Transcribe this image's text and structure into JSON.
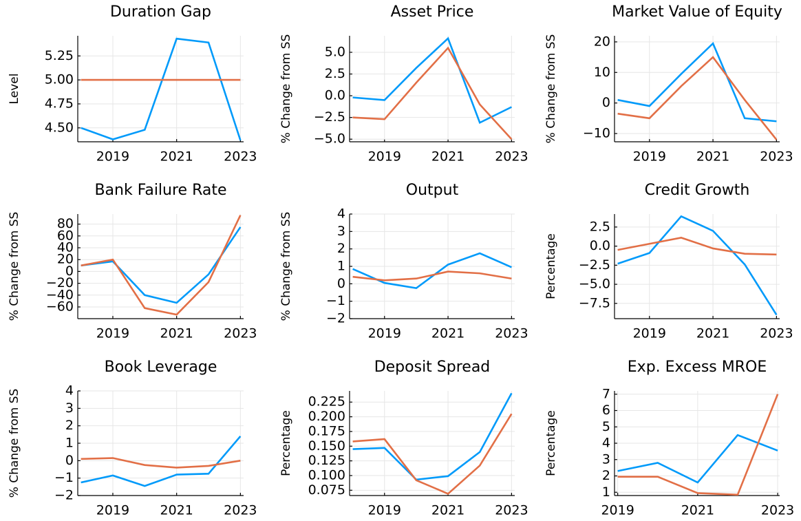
{
  "chart_data": [
    {
      "type": "line",
      "title": "Duration Gap",
      "ylabel": "Level",
      "x": [
        2018,
        2019,
        2020,
        2021,
        2022,
        2023
      ],
      "series": [
        {
          "color": "#009afa",
          "values": [
            4.5,
            4.38,
            4.48,
            5.43,
            5.39,
            4.37
          ]
        },
        {
          "color": "#e26f46",
          "values": [
            5.0,
            5.0,
            5.0,
            5.0,
            5.0,
            5.0
          ]
        }
      ],
      "xlim": [
        2017.9,
        2023.1
      ],
      "xticks": [
        2019,
        2021,
        2023
      ],
      "ylim": [
        4.355,
        5.46
      ],
      "yticks": [
        {
          "value": 4.5,
          "label": "4.50"
        },
        4.75,
        {
          "value": 5,
          "label": "5.00"
        },
        5.25
      ],
      "grid": true
    },
    {
      "type": "line",
      "title": "Asset Price",
      "ylabel": "% Change from SS",
      "x": [
        2018,
        2019,
        2020,
        2021,
        2022,
        2023
      ],
      "series": [
        {
          "color": "#009afa",
          "values": [
            -0.2,
            -0.5,
            3.2,
            6.6,
            -3.1,
            -1.3
          ]
        },
        {
          "color": "#e26f46",
          "values": [
            -2.5,
            -2.7,
            1.5,
            5.5,
            -1.0,
            -5.0
          ]
        }
      ],
      "xlim": [
        2017.9,
        2023.1
      ],
      "xticks": [
        2019,
        2021,
        2023
      ],
      "ylim": [
        -5.3,
        6.9
      ],
      "yticks": [
        {
          "value": -5,
          "label": "−5.0"
        },
        {
          "value": -2.5,
          "label": "−2.5"
        },
        {
          "value": 0,
          "label": "0.0"
        },
        2.5,
        {
          "value": 5,
          "label": "5.0"
        }
      ],
      "grid": true
    },
    {
      "type": "line",
      "title": "Market Value of Equity",
      "ylabel": "% Change from SS",
      "x": [
        2018,
        2019,
        2020,
        2021,
        2022,
        2023
      ],
      "series": [
        {
          "color": "#009afa",
          "values": [
            1,
            -1,
            9.5,
            19.5,
            -5,
            -6
          ]
        },
        {
          "color": "#e26f46",
          "values": [
            -3.5,
            -5,
            5.5,
            15,
            1,
            -12
          ]
        }
      ],
      "xlim": [
        2017.9,
        2023.1
      ],
      "xticks": [
        2019,
        2021,
        2023
      ],
      "ylim": [
        -12.7,
        22
      ],
      "yticks": [
        {
          "value": -10,
          "label": "−10"
        },
        0,
        10,
        20
      ],
      "grid": true
    },
    {
      "type": "line",
      "title": "Bank Failure Rate",
      "ylabel": "% Change from SS",
      "x": [
        2018,
        2019,
        2020,
        2021,
        2022,
        2023
      ],
      "series": [
        {
          "color": "#009afa",
          "values": [
            10,
            17,
            -40,
            -53,
            -5,
            75
          ]
        },
        {
          "color": "#e26f46",
          "values": [
            10,
            20,
            -62,
            -73,
            -18,
            95
          ]
        }
      ],
      "xlim": [
        2017.9,
        2023.1
      ],
      "xticks": [
        2019,
        2021,
        2023
      ],
      "ylim": [
        -79.8,
        97
      ],
      "yticks": [
        {
          "value": -60,
          "label": "−60"
        },
        {
          "value": -40,
          "label": "−40"
        },
        {
          "value": -20,
          "label": "−20"
        },
        0,
        20,
        40,
        60,
        80
      ],
      "grid": true
    },
    {
      "type": "line",
      "title": "Output",
      "ylabel": "% Change from SS",
      "x": [
        2018,
        2019,
        2020,
        2021,
        2022,
        2023
      ],
      "series": [
        {
          "color": "#009afa",
          "values": [
            0.85,
            0.05,
            -0.25,
            1.1,
            1.75,
            0.95
          ]
        },
        {
          "color": "#e26f46",
          "values": [
            0.4,
            0.2,
            0.3,
            0.7,
            0.6,
            0.3
          ]
        }
      ],
      "xlim": [
        2017.9,
        2023.1
      ],
      "xticks": [
        2019,
        2021,
        2023
      ],
      "ylim": [
        -2,
        4
      ],
      "yticks": [
        {
          "value": -2,
          "label": "−2"
        },
        {
          "value": -1,
          "label": "−1"
        },
        0,
        1,
        2,
        3,
        4
      ],
      "grid": true
    },
    {
      "type": "line",
      "title": "Credit Growth",
      "ylabel": "Percentage",
      "x": [
        2018,
        2019,
        2020,
        2021,
        2022,
        2023
      ],
      "series": [
        {
          "color": "#009afa",
          "values": [
            -2.3,
            -0.9,
            3.9,
            2.0,
            -2.4,
            -9.0
          ]
        },
        {
          "color": "#e26f46",
          "values": [
            -0.5,
            0.3,
            1.1,
            -0.3,
            -1.0,
            -1.1
          ]
        }
      ],
      "xlim": [
        2017.9,
        2023.1
      ],
      "xticks": [
        2019,
        2021,
        2023
      ],
      "ylim": [
        -9.5,
        4.2
      ],
      "yticks": [
        {
          "value": -7.5,
          "label": "−7.5"
        },
        {
          "value": -5,
          "label": "−5.0"
        },
        {
          "value": -2.5,
          "label": "−2.5"
        },
        {
          "value": 0,
          "label": "0.0"
        },
        2.5
      ],
      "grid": true
    },
    {
      "type": "line",
      "title": "Book Leverage",
      "ylabel": "% Change from SS",
      "x": [
        2018,
        2019,
        2020,
        2021,
        2022,
        2023
      ],
      "series": [
        {
          "color": "#009afa",
          "values": [
            -1.25,
            -0.85,
            -1.45,
            -0.8,
            -0.75,
            1.4
          ]
        },
        {
          "color": "#e26f46",
          "values": [
            0.1,
            0.15,
            -0.25,
            -0.4,
            -0.3,
            0.0
          ]
        }
      ],
      "xlim": [
        2017.9,
        2023.1
      ],
      "xticks": [
        2019,
        2021,
        2023
      ],
      "ylim": [
        -2,
        4
      ],
      "yticks": [
        {
          "value": -2,
          "label": "−2"
        },
        {
          "value": -1,
          "label": "−1"
        },
        0,
        1,
        2,
        3,
        4
      ],
      "grid": true
    },
    {
      "type": "line",
      "title": "Deposit Spread",
      "ylabel": "Percentage",
      "x": [
        2018,
        2019,
        2020,
        2021,
        2022,
        2023
      ],
      "series": [
        {
          "color": "#009afa",
          "values": [
            0.145,
            0.147,
            0.093,
            0.099,
            0.14,
            0.24
          ]
        },
        {
          "color": "#e26f46",
          "values": [
            0.158,
            0.162,
            0.092,
            0.069,
            0.117,
            0.205
          ]
        }
      ],
      "xlim": [
        2017.9,
        2023.1
      ],
      "xticks": [
        2019,
        2021,
        2023
      ],
      "ylim": [
        0.066,
        0.244
      ],
      "yticks": [
        0.075,
        {
          "value": 0.1,
          "label": "0.100"
        },
        0.125,
        {
          "value": 0.15,
          "label": "0.150"
        },
        0.175,
        {
          "value": 0.2,
          "label": "0.200"
        },
        0.225
      ],
      "grid": true
    },
    {
      "type": "line",
      "title": "Exp. Excess MROE",
      "ylabel": "Percentage",
      "x": [
        2019,
        2020,
        2021,
        2022,
        2023
      ],
      "series": [
        {
          "color": "#009afa",
          "values": [
            2.3,
            2.8,
            1.6,
            4.5,
            3.55
          ]
        },
        {
          "color": "#e26f46",
          "values": [
            1.95,
            1.95,
            0.95,
            0.85,
            7.0
          ]
        }
      ],
      "xlim": [
        2018.92,
        2023.05
      ],
      "xticks": [
        2019,
        2021,
        2023
      ],
      "ylim": [
        0.8,
        7.2
      ],
      "yticks": [
        1,
        2,
        3,
        4,
        5,
        6,
        7
      ],
      "grid": true
    }
  ]
}
